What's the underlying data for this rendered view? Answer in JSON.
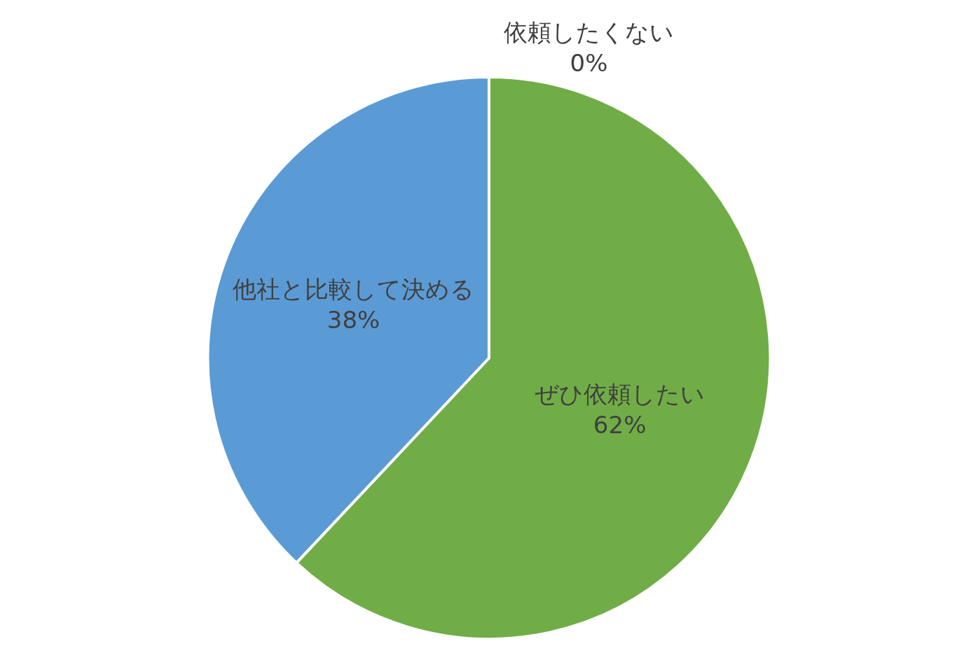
{
  "chart_data": {
    "type": "pie",
    "categories": [
      "ぜひ依頼したい",
      "他社と比較して決める",
      "依頼したくない"
    ],
    "values": [
      62,
      38,
      0
    ],
    "value_labels": [
      "62%",
      "38%",
      "0%"
    ],
    "colors": [
      "#70ad47",
      "#5b9bd5",
      "#a5a5a5"
    ],
    "legend": false
  }
}
